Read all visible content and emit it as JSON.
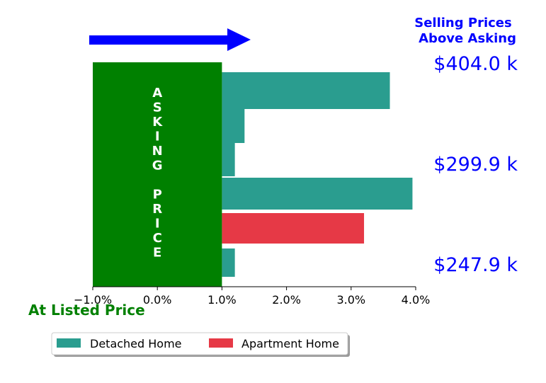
{
  "chart_data": {
    "type": "bar",
    "orientation": "horizontal",
    "x_ticks": [
      -1.0,
      0.0,
      1.0,
      2.0,
      3.0,
      4.0
    ],
    "x_tick_labels": [
      "−1.0%",
      "0.0%",
      "1.0%",
      "2.0%",
      "3.0%",
      "4.0%"
    ],
    "xlim": [
      -1.0,
      4.0
    ],
    "bars": [
      {
        "series": "Detached Home",
        "start": 1.0,
        "value": 3.6
      },
      {
        "series": "Detached Home",
        "start": 1.0,
        "value": 1.35
      },
      {
        "series": "Detached Home",
        "start": 1.0,
        "value": 1.2
      },
      {
        "series": "Detached Home",
        "start": 1.0,
        "value": 3.95
      },
      {
        "series": "Apartment Home",
        "start": 1.0,
        "value": 3.2
      },
      {
        "series": "Detached Home",
        "start": 1.0,
        "value": 1.2
      }
    ],
    "asking_block": {
      "from": -1.0,
      "to": 1.0,
      "text": "ASKING PRICE",
      "color": "#008000"
    },
    "price_labels": [
      "$404.0 k",
      "$299.9 k",
      "$247.9 k"
    ],
    "selling_title": [
      "Selling Prices",
      "Above Asking"
    ],
    "listed_label": "At Listed Price",
    "legend": [
      {
        "name": "Detached Home",
        "color": "#2a9d8f"
      },
      {
        "name": "Apartment Home",
        "color": "#e63946"
      }
    ],
    "colors": {
      "arrow": "#0000ff",
      "accent_text": "#0000ff",
      "listed_text": "#008000"
    }
  }
}
